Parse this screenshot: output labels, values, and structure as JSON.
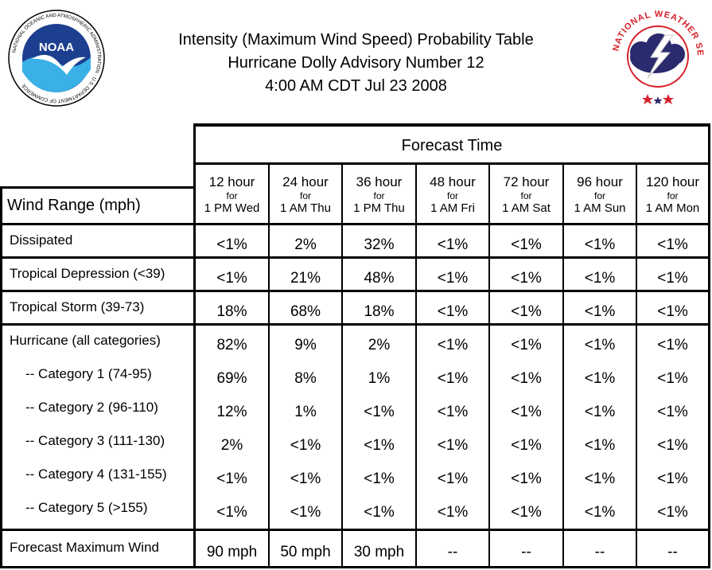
{
  "title": {
    "line1": "Intensity (Maximum Wind Speed) Probability Table",
    "line2": "Hurricane Dolly Advisory Number 12",
    "line3": "4:00 AM CDT Jul 23 2008"
  },
  "logos": {
    "noaa_text": "NOAA",
    "noaa_ring": "NATIONAL OCEANIC AND ATMOSPHERIC ADMINISTRATION · U.S. DEPARTMENT OF COMMERCE",
    "nws_ring": "NATIONAL WEATHER SERVICE"
  },
  "table": {
    "forecast_time_label": "Forecast Time",
    "wind_range_label": "Wind Range (mph)",
    "columns": [
      {
        "hour": "12 hour",
        "for": "for",
        "time": "1 PM Wed"
      },
      {
        "hour": "24 hour",
        "for": "for",
        "time": "1 AM Thu"
      },
      {
        "hour": "36 hour",
        "for": "for",
        "time": "1 PM Thu"
      },
      {
        "hour": "48 hour",
        "for": "for",
        "time": "1 AM Fri"
      },
      {
        "hour": "72 hour",
        "for": "for",
        "time": "1 AM Sat"
      },
      {
        "hour": "96 hour",
        "for": "for",
        "time": "1 AM Sun"
      },
      {
        "hour": "120 hour",
        "for": "for",
        "time": "1 AM Mon"
      }
    ],
    "rows": [
      {
        "label": "Dissipated",
        "values": [
          "<1%",
          "2%",
          "32%",
          "<1%",
          "<1%",
          "<1%",
          "<1%"
        ]
      },
      {
        "label": "Tropical Depression (<39)",
        "values": [
          "<1%",
          "21%",
          "48%",
          "<1%",
          "<1%",
          "<1%",
          "<1%"
        ]
      },
      {
        "label": "Tropical Storm (39-73)",
        "values": [
          "18%",
          "68%",
          "18%",
          "<1%",
          "<1%",
          "<1%",
          "<1%"
        ]
      },
      {
        "label": "Hurricane (all categories)",
        "values": [
          "82%",
          "9%",
          "2%",
          "<1%",
          "<1%",
          "<1%",
          "<1%"
        ]
      },
      {
        "label": "-- Category 1 (74-95)",
        "values": [
          "69%",
          "8%",
          "1%",
          "<1%",
          "<1%",
          "<1%",
          "<1%"
        ]
      },
      {
        "label": "-- Category 2 (96-110)",
        "values": [
          "12%",
          "1%",
          "<1%",
          "<1%",
          "<1%",
          "<1%",
          "<1%"
        ]
      },
      {
        "label": "-- Category 3 (111-130)",
        "values": [
          "2%",
          "<1%",
          "<1%",
          "<1%",
          "<1%",
          "<1%",
          "<1%"
        ]
      },
      {
        "label": "-- Category 4 (131-155)",
        "values": [
          "<1%",
          "<1%",
          "<1%",
          "<1%",
          "<1%",
          "<1%",
          "<1%"
        ]
      },
      {
        "label": "-- Category 5 (>155)",
        "values": [
          "<1%",
          "<1%",
          "<1%",
          "<1%",
          "<1%",
          "<1%",
          "<1%"
        ]
      }
    ],
    "footer": {
      "label": "Forecast Maximum Wind",
      "values": [
        "90 mph",
        "50 mph",
        "30 mph",
        "--",
        "--",
        "--",
        "--"
      ]
    }
  },
  "colors": {
    "border": "#000000",
    "noaa_blue": "#1d3f8f",
    "nws_red": "#d6202a",
    "nws_navy": "#2a2a6e"
  }
}
